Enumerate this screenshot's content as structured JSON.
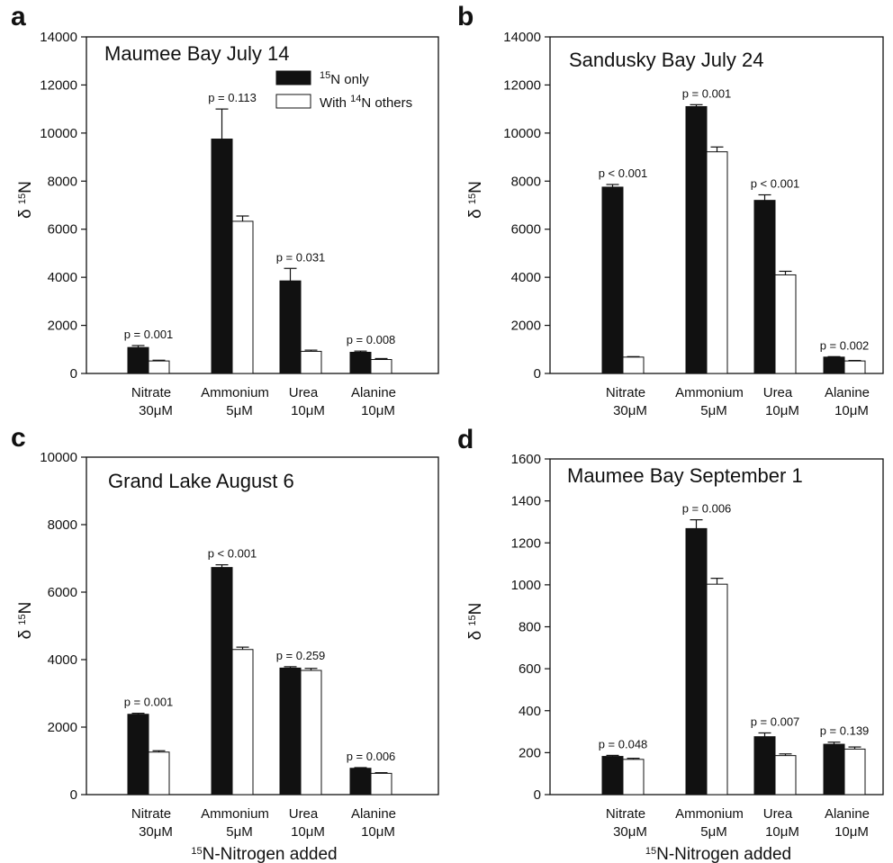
{
  "chart_data": [
    {
      "type": "bar",
      "panel": "a",
      "title": "Maumee Bay July 14",
      "ylabel": "δ 15N",
      "xlabel": "",
      "ylim": [
        0,
        14000
      ],
      "yticks": [
        0,
        2000,
        4000,
        6000,
        8000,
        10000,
        12000,
        14000
      ],
      "categories": [
        {
          "name": "Nitrate",
          "conc": "30μM"
        },
        {
          "name": "Ammonium",
          "conc": "5μM"
        },
        {
          "name": "Urea",
          "conc": "10μM"
        },
        {
          "name": "Alanine",
          "conc": "10μM"
        }
      ],
      "series": [
        {
          "name": "15N only",
          "color": "#111111",
          "values": [
            1080,
            9750,
            3850,
            880
          ],
          "errors": [
            80,
            1250,
            520,
            50
          ]
        },
        {
          "name": "With 14N others",
          "color": "#ffffff",
          "values": [
            520,
            6330,
            920,
            580
          ],
          "errors": [
            30,
            220,
            50,
            40
          ]
        }
      ],
      "pvalues": [
        "p = 0.001",
        "p = 0.113",
        "p = 0.031",
        "p = 0.008"
      ],
      "legend": {
        "visible": true,
        "placement": "top-right"
      }
    },
    {
      "type": "bar",
      "panel": "b",
      "title": "Sandusky Bay July 24",
      "ylabel": "δ 15N",
      "xlabel": "",
      "ylim": [
        0,
        14000
      ],
      "yticks": [
        0,
        2000,
        4000,
        6000,
        8000,
        10000,
        12000,
        14000
      ],
      "categories": [
        {
          "name": "Nitrate",
          "conc": "30μM"
        },
        {
          "name": "Ammonium",
          "conc": "5μM"
        },
        {
          "name": "Urea",
          "conc": "10μM"
        },
        {
          "name": "Alanine",
          "conc": "10μM"
        }
      ],
      "series": [
        {
          "name": "15N only",
          "color": "#111111",
          "values": [
            7750,
            11100,
            7200,
            680
          ],
          "errors": [
            110,
            80,
            230,
            20
          ]
        },
        {
          "name": "With 14N others",
          "color": "#ffffff",
          "values": [
            680,
            9220,
            4100,
            520
          ],
          "errors": [
            20,
            200,
            150,
            20
          ]
        }
      ],
      "pvalues": [
        "p < 0.001",
        "p = 0.001",
        "p < 0.001",
        "p = 0.002"
      ],
      "legend": {
        "visible": false
      }
    },
    {
      "type": "bar",
      "panel": "c",
      "title": "Grand Lake August 6",
      "ylabel": "δ 15N",
      "xlabel": "15N-Nitrogen added",
      "ylim": [
        0,
        10000
      ],
      "yticks": [
        0,
        2000,
        4000,
        6000,
        8000,
        10000
      ],
      "categories": [
        {
          "name": "Nitrate",
          "conc": "30μM"
        },
        {
          "name": "Ammonium",
          "conc": "5μM"
        },
        {
          "name": "Urea",
          "conc": "10μM"
        },
        {
          "name": "Alanine",
          "conc": "10μM"
        }
      ],
      "series": [
        {
          "name": "15N only",
          "color": "#111111",
          "values": [
            2380,
            6730,
            3750,
            780
          ],
          "errors": [
            30,
            80,
            40,
            20
          ]
        },
        {
          "name": "With 14N others",
          "color": "#ffffff",
          "values": [
            1260,
            4300,
            3680,
            630
          ],
          "errors": [
            40,
            70,
            60,
            20
          ]
        }
      ],
      "pvalues": [
        "p = 0.001",
        "p < 0.001",
        "p = 0.259",
        "p = 0.006"
      ],
      "legend": {
        "visible": false
      }
    },
    {
      "type": "bar",
      "panel": "d",
      "title": "Maumee Bay September 1",
      "ylabel": "δ 15N",
      "xlabel": "15N-Nitrogen added",
      "ylim": [
        0,
        1600
      ],
      "yticks": [
        0,
        200,
        400,
        600,
        800,
        1000,
        1200,
        1400,
        1600
      ],
      "categories": [
        {
          "name": "Nitrate",
          "conc": "30μM"
        },
        {
          "name": "Ammonium",
          "conc": "5μM"
        },
        {
          "name": "Urea",
          "conc": "10μM"
        },
        {
          "name": "Alanine",
          "conc": "10μM"
        }
      ],
      "series": [
        {
          "name": "15N only",
          "color": "#111111",
          "values": [
            182,
            1268,
            276,
            240
          ],
          "errors": [
            5,
            42,
            18,
            10
          ]
        },
        {
          "name": "With 14N others",
          "color": "#ffffff",
          "values": [
            168,
            1003,
            186,
            217
          ],
          "errors": [
            5,
            28,
            8,
            10
          ]
        }
      ],
      "pvalues": [
        "p = 0.048",
        "p = 0.006",
        "p = 0.007",
        "p = 0.139"
      ],
      "legend": {
        "visible": false
      }
    }
  ]
}
